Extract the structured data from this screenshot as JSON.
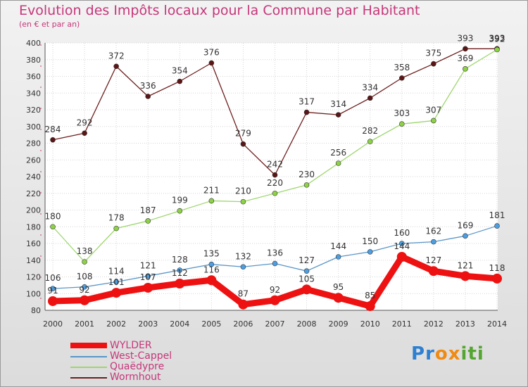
{
  "title": "Evolution des Impôts locaux pour la Commune par Habitant",
  "subtitle": "(en € et par an)",
  "logo": {
    "letters": [
      "P",
      "r",
      "o",
      "x",
      "i",
      "t",
      "i"
    ],
    "colors": [
      "#2f7fd1",
      "#2f7fd1",
      "#f08a12",
      "#f08a12",
      "#55a532",
      "#55a532",
      "#55a532"
    ]
  },
  "chart_data": {
    "type": "line",
    "x": [
      "2000",
      "2001",
      "2002",
      "2003",
      "2004",
      "2005",
      "2006",
      "2007",
      "2008",
      "2009",
      "2010",
      "2011",
      "2012",
      "2013",
      "2014"
    ],
    "ylim": [
      80,
      400
    ],
    "yticks": [
      "80",
      "100",
      "120",
      "140",
      "160",
      "180",
      "200",
      "220",
      "240",
      "260",
      "280",
      "300",
      "320",
      "340",
      "360",
      "380",
      "400"
    ],
    "grid": true,
    "legend_position": "bottom-left",
    "series": [
      {
        "name": "WYLDER",
        "color": "#ee1111",
        "point_color": "#ee1111",
        "values": [
          91,
          92,
          101,
          107,
          112,
          116,
          87,
          92,
          105,
          95,
          85,
          144,
          127,
          121,
          118
        ]
      },
      {
        "name": "West-Cappel",
        "color": "#5a96c8",
        "point_color": "#4d9ee0",
        "values": [
          106,
          108,
          114,
          121,
          128,
          135,
          132,
          136,
          127,
          144,
          150,
          160,
          162,
          169,
          181
        ]
      },
      {
        "name": "Quaëdypre",
        "color": "#9ed66e",
        "point_color": "#8dd244",
        "values": [
          180,
          138,
          178,
          187,
          199,
          211,
          210,
          220,
          230,
          256,
          282,
          303,
          307,
          369,
          392
        ]
      },
      {
        "name": "Wormhout",
        "color": "#6e1e1e",
        "point_color": "#5c1515",
        "values": [
          284,
          292,
          372,
          336,
          354,
          376,
          279,
          242,
          317,
          314,
          334,
          358,
          375,
          393,
          393
        ]
      }
    ]
  }
}
